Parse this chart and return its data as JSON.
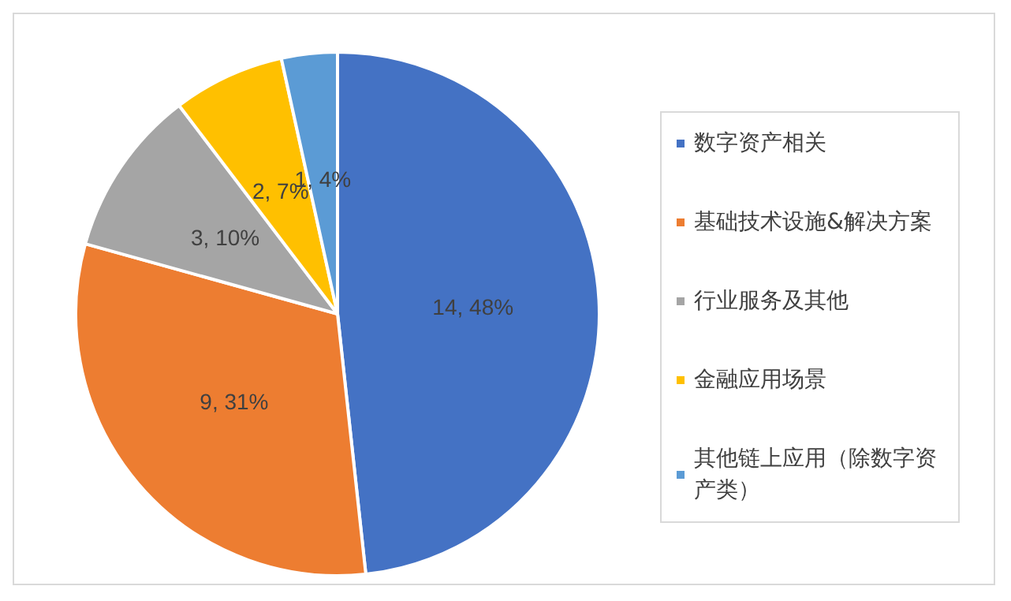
{
  "chart_data": {
    "type": "pie",
    "categories": [
      "数字资产相关",
      "基础技术设施&解决方案",
      "行业服务及其他",
      "金融应用场景",
      "其他链上应用（除数字资产类）"
    ],
    "values": [
      14,
      9,
      3,
      2,
      1
    ],
    "colors": [
      "#4472c4",
      "#ed7d31",
      "#a5a5a5",
      "#ffc000",
      "#5b9bd5"
    ],
    "value_labels": [
      "14, 48%",
      "9, 31%",
      "3, 10%",
      "2, 7%",
      "1, 4%"
    ],
    "legend": "right"
  }
}
